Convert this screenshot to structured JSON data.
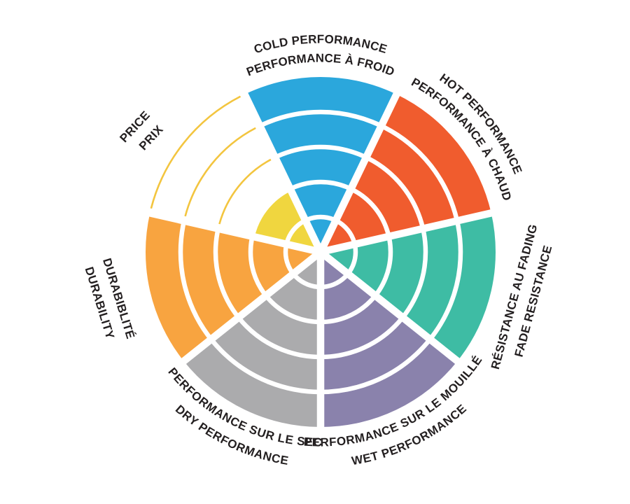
{
  "page": {
    "background_color": "#FFFFFF"
  },
  "chart_data": {
    "type": "pie",
    "subtype": "polar-sector-rating-wheel",
    "title": "",
    "max_level": 5,
    "num_levels": 5,
    "direction": "clockwise",
    "first_sector_center_deg": -90,
    "ring_divider_color": "#FFFFFF",
    "background_color": "#FFFFFF",
    "label_color": "#231F20",
    "sectors": [
      {
        "id": "cold",
        "label_en": "COLD PERFORMANCE",
        "label_fr": "PERFORMANCE À FROID",
        "value": 5,
        "color": "#2BA7DC",
        "label_layout": "curved-top"
      },
      {
        "id": "hot",
        "label_en": "HOT PERFORMANCE",
        "label_fr": "PERFORMANCE À CHAUD",
        "value": 5,
        "color": "#F05C2E",
        "label_layout": "curved-top"
      },
      {
        "id": "fade",
        "label_en": "FADE RESISTANCE",
        "label_fr": "RÉSISTANCE AU FADING",
        "value": 5,
        "color": "#3EBCA4",
        "label_layout": "straight"
      },
      {
        "id": "wet",
        "label_en": "WET PERFORMANCE",
        "label_fr": "PERFORMANCE SUR LE MOUILLÉ",
        "value": 5,
        "color": "#8A82AC",
        "label_layout": "curved-bottom"
      },
      {
        "id": "dry",
        "label_en": "DRY PERFORMANCE",
        "label_fr": "PERFORMANCE SUR LE SEC",
        "value": 5,
        "color": "#ABABAD",
        "label_layout": "curved-bottom"
      },
      {
        "id": "durability",
        "label_en": "DURABILITY",
        "label_fr": "DURABIBLITÉ",
        "value": 5,
        "color": "#F8A440",
        "label_layout": "straight"
      },
      {
        "id": "price",
        "label_en": "PRICE",
        "label_fr": "PRIX",
        "value": 2,
        "color": "#F0D63F",
        "unfilled_outline_color": "#F3C53F",
        "label_layout": "straight"
      }
    ]
  }
}
